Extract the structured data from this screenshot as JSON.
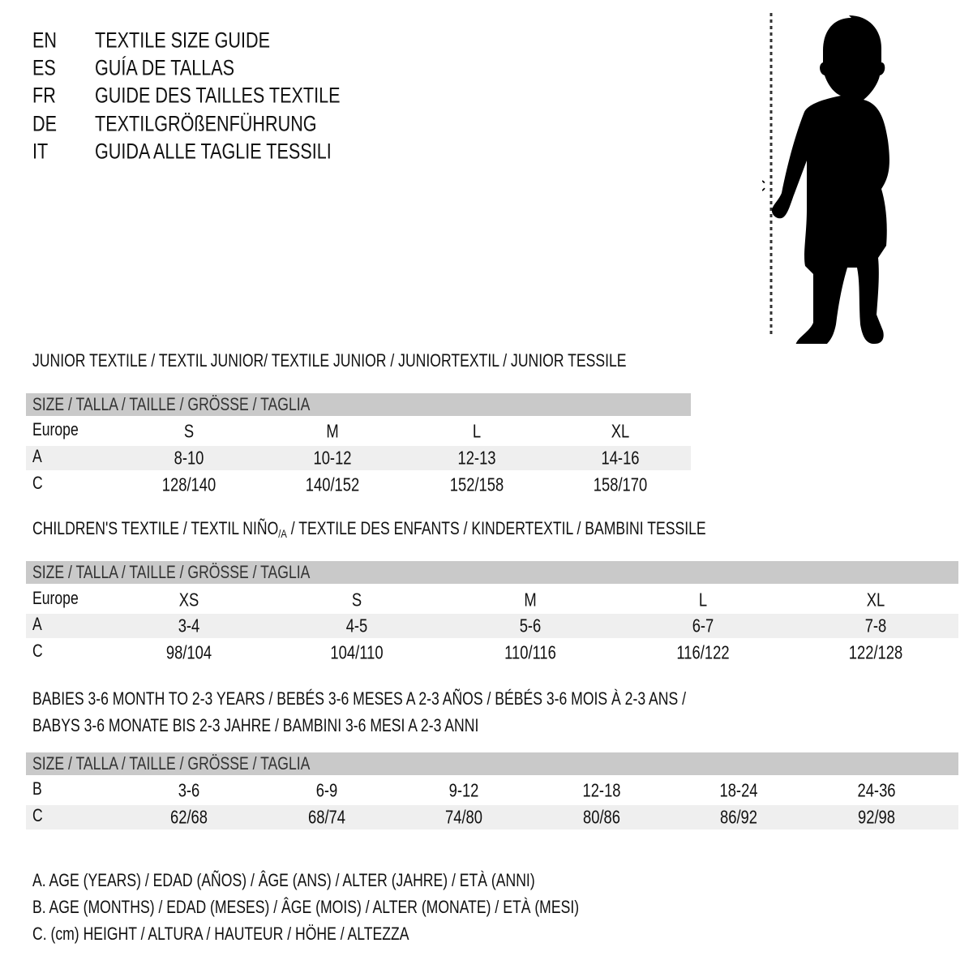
{
  "header": {
    "lines": [
      {
        "code": "EN",
        "text": "TEXTILE SIZE GUIDE"
      },
      {
        "code": "ES",
        "text": "GUÍA DE TALLAS"
      },
      {
        "code": "FR",
        "text": "GUIDE DES TAILLES TEXTILE"
      },
      {
        "code": "DE",
        "text": "TEXTILGRÖßENFÜHRUNG"
      },
      {
        "code": "IT",
        "text": "GUIDA ALLE TAGLIE TESSILI"
      }
    ]
  },
  "figure": {
    "label": "C",
    "icon": "child-silhouette"
  },
  "size_header": "SIZE / TALLA / TAILLE / GRÖSSE / TAGLIA",
  "junior": {
    "title": "JUNIOR TEXTILE / TEXTIL JUNIOR/ TEXTILE JUNIOR / JUNIORTEXTIL / JUNIOR TESSILE",
    "rows": [
      {
        "label": "Europe",
        "values": [
          "S",
          "M",
          "L",
          "XL"
        ]
      },
      {
        "label": "A",
        "values": [
          "8-10",
          "10-12",
          "12-13",
          "14-16"
        ]
      },
      {
        "label": "C",
        "values": [
          "128/140",
          "140/152",
          "152/158",
          "158/170"
        ]
      }
    ]
  },
  "children": {
    "title_pre": "CHILDREN'S TEXTILE / TEXTIL NIÑO",
    "title_sub": "/A",
    "title_post": " / TEXTILE DES ENFANTS / KINDERTEXTIL / BAMBINI TESSILE",
    "rows": [
      {
        "label": "Europe",
        "values": [
          "XS",
          "S",
          "M",
          "L",
          "XL"
        ]
      },
      {
        "label": "A",
        "values": [
          "3-4",
          "4-5",
          "5-6",
          "6-7",
          "7-8"
        ]
      },
      {
        "label": "C",
        "values": [
          "98/104",
          "104/110",
          "110/116",
          "116/122",
          "122/128"
        ]
      }
    ]
  },
  "babies": {
    "title_line1": "BABIES 3-6 MONTH TO 2-3 YEARS / BEBÉS 3-6 MESES A 2-3 AÑOS / BÉBÉS 3-6 MOIS À 2-3 ANS /",
    "title_line2": "BABYS 3-6 MONATE BIS 2-3 JAHRE / BAMBINI 3-6 MESI A 2-3 ANNI",
    "rows": [
      {
        "label": "B",
        "values": [
          "3-6",
          "6-9",
          "9-12",
          "12-18",
          "18-24",
          "24-36"
        ]
      },
      {
        "label": "C",
        "values": [
          "62/68",
          "68/74",
          "74/80",
          "80/86",
          "86/92",
          "92/98"
        ]
      }
    ]
  },
  "legend": [
    "A. AGE (YEARS) / EDAD (AÑOS) / ÂGE (ANS) / ALTER (JAHRE) / ETÀ (ANNI)",
    "B. AGE (MONTHS) / EDAD (MESES) / ÂGE (MOIS) / ALTER (MONATE) / ETÀ (MESI)",
    "C. (cm) HEIGHT / ALTURA / HAUTEUR / HÖHE / ALTEZZA"
  ],
  "colors": {
    "header_band": "#c9c9c9",
    "alt_row": "#efefef"
  }
}
